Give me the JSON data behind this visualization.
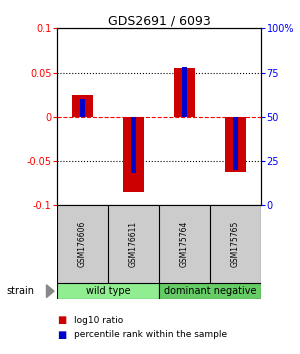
{
  "title": "GDS2691 / 6093",
  "samples": [
    "GSM176606",
    "GSM176611",
    "GSM175764",
    "GSM175765"
  ],
  "log10_ratio": [
    0.025,
    -0.085,
    0.055,
    -0.062
  ],
  "percentile_actual": [
    60,
    18,
    78,
    20
  ],
  "ylim_left": [
    -0.1,
    0.1
  ],
  "ylim_right": [
    0,
    100
  ],
  "yticks_left": [
    -0.1,
    -0.05,
    0,
    0.05,
    0.1
  ],
  "yticks_right": [
    0,
    25,
    50,
    75,
    100
  ],
  "groups": [
    {
      "label": "wild type",
      "indices": [
        0,
        1
      ],
      "color": "#90ee90"
    },
    {
      "label": "dominant negative",
      "indices": [
        2,
        3
      ],
      "color": "#66cc66"
    }
  ],
  "bar_width": 0.4,
  "blue_bar_width": 0.1,
  "red_color": "#cc0000",
  "blue_color": "#0000cc",
  "zero_line_color": "#ff0000",
  "sample_box_color": "#cccccc",
  "legend_red": "log10 ratio",
  "legend_blue": "percentile rank within the sample",
  "strain_label": "strain",
  "plot_bg": "white",
  "title_fontsize": 9,
  "tick_fontsize": 7,
  "sample_fontsize": 5.5,
  "group_fontsize": 7,
  "legend_fontsize": 6.5
}
